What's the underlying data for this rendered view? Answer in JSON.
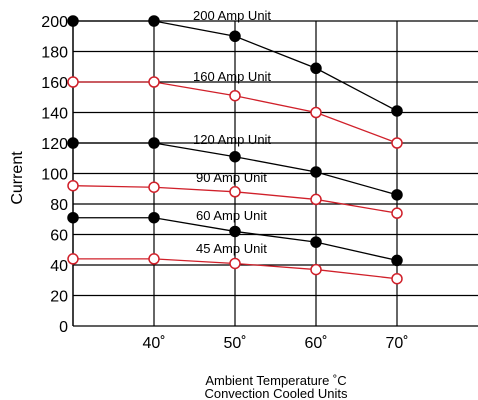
{
  "chart_data": {
    "type": "line",
    "ylabel": "Current",
    "xlabel": [
      "Ambient Temperature ˚C",
      "Convection Cooled Units"
    ],
    "xlim": [
      30,
      80
    ],
    "ylim": [
      0,
      200
    ],
    "y_ticks": [
      0,
      20,
      40,
      60,
      80,
      100,
      120,
      140,
      160,
      180,
      200
    ],
    "x_ticks": [
      40,
      50,
      60,
      70
    ],
    "x_tick_labels": [
      "40˚",
      "50˚",
      "60˚",
      "70˚"
    ],
    "grid": true,
    "x": [
      30,
      40,
      50,
      60,
      70
    ],
    "series": [
      {
        "name": "200 Amp Unit",
        "color": "#000000",
        "marker": "filled-circle",
        "values": [
          200,
          200,
          190,
          169,
          141
        ]
      },
      {
        "name": "160 Amp Unit",
        "color": "#d0202a",
        "marker": "open-circle",
        "values": [
          160,
          160,
          151,
          140,
          120
        ]
      },
      {
        "name": "120 Amp Unit",
        "color": "#000000",
        "marker": "filled-circle",
        "values": [
          120,
          120,
          111,
          101,
          86
        ]
      },
      {
        "name": "90 Amp Unit",
        "color": "#d0202a",
        "marker": "open-circle",
        "values": [
          92,
          91,
          88,
          83,
          74
        ]
      },
      {
        "name": "60 Amp Unit",
        "color": "#000000",
        "marker": "filled-circle",
        "values": [
          71,
          71,
          62,
          55,
          43
        ]
      },
      {
        "name": "45 Amp Unit",
        "color": "#d0202a",
        "marker": "open-circle",
        "values": [
          44,
          44,
          41,
          37,
          31
        ]
      }
    ]
  }
}
